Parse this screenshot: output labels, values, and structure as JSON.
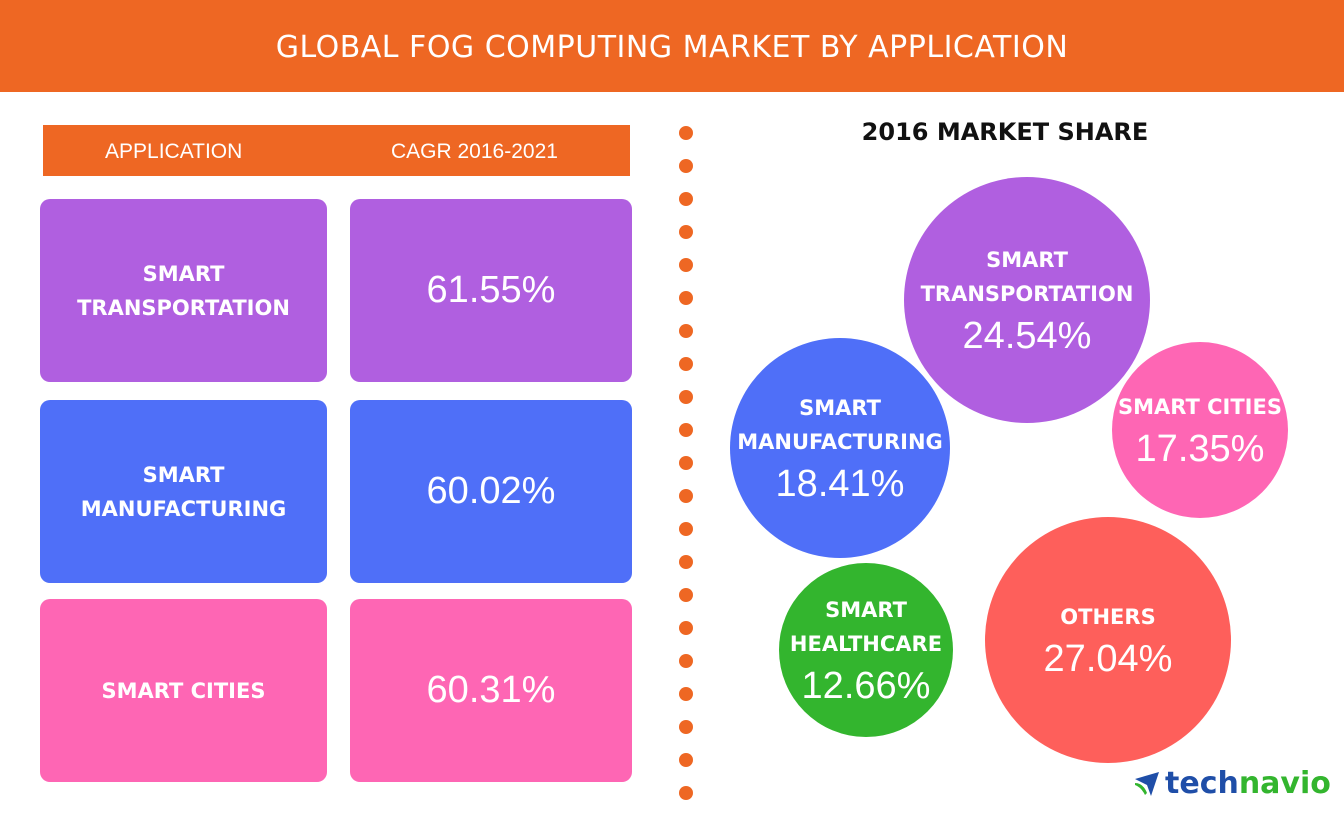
{
  "header": {
    "title": "GLOBAL FOG COMPUTING MARKET BY APPLICATION"
  },
  "table": {
    "col_application": "APPLICATION",
    "col_cagr": "CAGR 2016-2021",
    "rows": [
      {
        "application": "SMART TRANSPORTATION",
        "line1": "SMART",
        "line2": "TRANSPORTATION",
        "cagr": "61.55%",
        "color": "#b05fe0"
      },
      {
        "application": "SMART MANUFACTURING",
        "line1": "SMART",
        "line2": "MANUFACTURING",
        "cagr": "60.02%",
        "color": "#4f6ff8"
      },
      {
        "application": "SMART CITIES",
        "line1": "SMART CITIES",
        "line2": "",
        "cagr": "60.31%",
        "color": "#fe66b4"
      }
    ]
  },
  "chart_data": {
    "type": "bubble",
    "title": "2016 MARKET SHARE",
    "categories": [
      "SMART TRANSPORTATION",
      "SMART MANUFACTURING",
      "SMART CITIES",
      "SMART HEALTHCARE",
      "OTHERS"
    ],
    "values": [
      24.54,
      18.41,
      17.35,
      12.66,
      27.04
    ],
    "labels": [
      [
        "SMART",
        "TRANSPORTATION"
      ],
      [
        "SMART",
        "MANUFACTURING"
      ],
      [
        "SMART CITIES",
        ""
      ],
      [
        "SMART",
        "HEALTHCARE"
      ],
      [
        "OTHERS",
        ""
      ]
    ],
    "value_labels": [
      "24.54%",
      "18.41%",
      "17.35%",
      "12.66%",
      "27.04%"
    ],
    "colors": [
      "#b05fe0",
      "#4f6ff8",
      "#fe66b4",
      "#33b52e",
      "#fe5f5b"
    ]
  },
  "logo": {
    "part1": "tech",
    "part2": "navio"
  },
  "colors": {
    "accent": "#ee6723"
  }
}
